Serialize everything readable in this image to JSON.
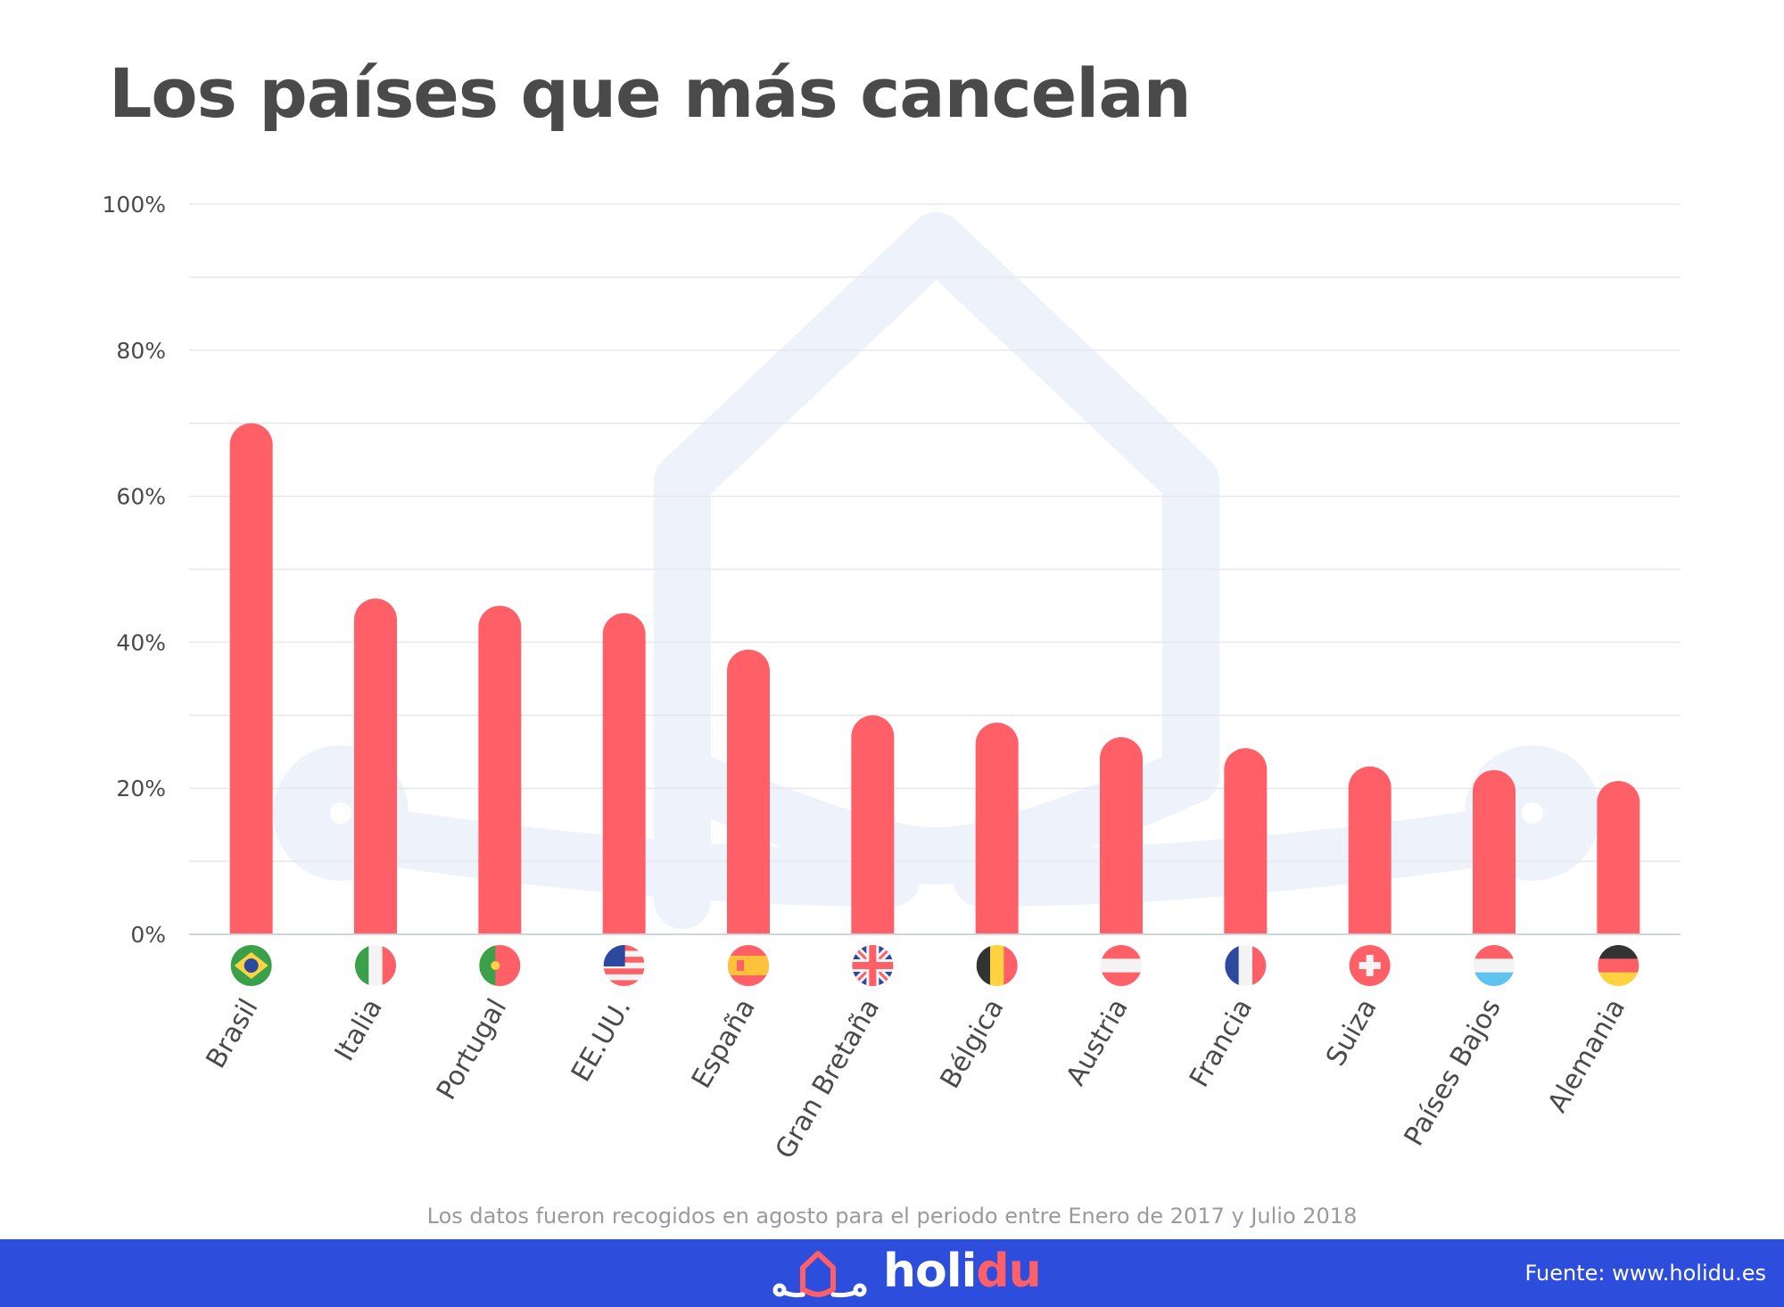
{
  "chart_data": {
    "type": "bar",
    "title": "Los países que más cancelan",
    "categories": [
      "Brasil",
      "Italia",
      "Portugal",
      "EE.UU.",
      "España",
      "Gran Bretaña",
      "Bélgica",
      "Austria",
      "Francia",
      "Suiza",
      "Países Bajos",
      "Alemania"
    ],
    "values": [
      70,
      46,
      45,
      44,
      39,
      30,
      29,
      27,
      25.5,
      23,
      22.5,
      21
    ],
    "ylim": [
      0,
      100
    ],
    "yticks": [
      0,
      20,
      40,
      60,
      80,
      100
    ],
    "ytick_labels": [
      "0%",
      "20%",
      "40%",
      "60%",
      "80%",
      "100%"
    ],
    "xlabel": "",
    "ylabel": "",
    "grid": true,
    "bar_color": "#ff5f66",
    "flags": [
      "brazil-flag-icon",
      "italy-flag-icon",
      "portugal-flag-icon",
      "usa-flag-icon",
      "spain-flag-icon",
      "uk-flag-icon",
      "belgium-flag-icon",
      "austria-flag-icon",
      "france-flag-icon",
      "switzerland-flag-icon",
      "netherlands-flag-icon",
      "germany-flag-icon"
    ]
  },
  "note": "Los datos fueron recogidos en agosto para el periodo entre Enero de 2017 y Julio 2018",
  "footer": {
    "brand_main": "holi",
    "brand_accent": "du",
    "source": "Fuente: www.holidu.es",
    "background": "#2d4edc"
  }
}
